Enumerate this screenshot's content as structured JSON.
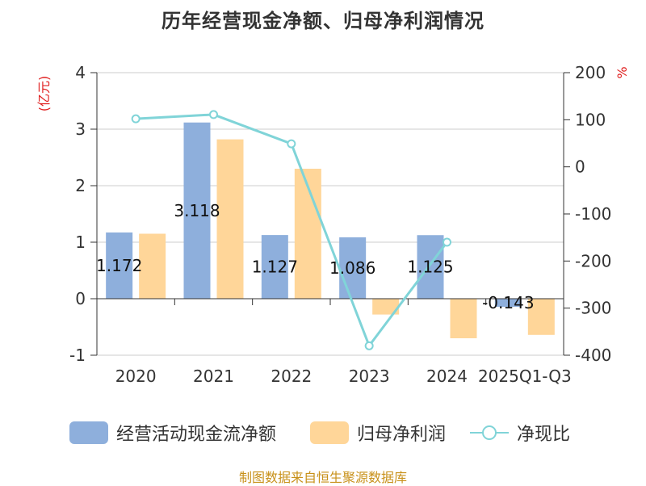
{
  "title": "历年经营现金净额、归母净利润情况",
  "source": "制图数据来自恒生聚源数据库",
  "colors": {
    "cash": "#8eafdc",
    "profit": "#ffd699",
    "ratio": "#80d4d8",
    "grid": "#cccccc",
    "axis": "#333333",
    "unit": "#e02020"
  },
  "legend": {
    "cash": "经营活动现金流净额",
    "profit": "归母净利润",
    "ratio": "净现比"
  },
  "chart_data": {
    "type": "bar",
    "title": "历年经营现金净额、归母净利润情况",
    "categories": [
      "2020",
      "2021",
      "2022",
      "2023",
      "2024",
      "2025Q1-Q3"
    ],
    "y_left": {
      "unit": "(亿元)",
      "ylim": [
        -1,
        4
      ],
      "ticks": [
        "4",
        "3",
        "2",
        "1",
        "0",
        "-1"
      ]
    },
    "y_right": {
      "unit": "%",
      "ylim": [
        -400,
        200
      ],
      "ticks": [
        "200",
        "100",
        "0",
        "-100",
        "-200",
        "-300",
        "-400"
      ]
    },
    "grid": true,
    "legend_position": "bottom",
    "series": [
      {
        "name": "经营活动现金流净额",
        "type": "bar",
        "axis": "left",
        "values": [
          1.172,
          3.118,
          1.127,
          1.086,
          1.125,
          -0.143
        ],
        "labels": [
          "1.172",
          "3.118",
          "1.127",
          "1.086",
          "1.125",
          "-0.143"
        ]
      },
      {
        "name": "归母净利润",
        "type": "bar",
        "axis": "left",
        "values": [
          1.15,
          2.82,
          2.3,
          -0.28,
          -0.7,
          -0.64
        ]
      },
      {
        "name": "净现比",
        "type": "line",
        "axis": "right",
        "values": [
          102,
          111,
          49,
          -380,
          -160,
          null
        ]
      }
    ]
  }
}
